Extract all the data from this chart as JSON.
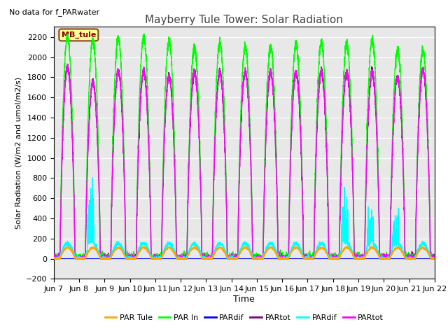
{
  "title": "Mayberry Tule Tower: Solar Radiation",
  "no_data_text": "No data for f_PARwater",
  "ylabel": "Solar Radiation (W/m2 and umol/m2/s)",
  "xlabel": "Time",
  "ylim": [
    -200,
    2300
  ],
  "xtick_labels": [
    "Jun 7",
    "Jun 8",
    "Jun 9",
    "Jun 10",
    "Jun 11",
    "Jun 12",
    "Jun 13",
    "Jun 14",
    "Jun 15",
    "Jun 16",
    "Jun 17",
    "Jun 18",
    "Jun 19",
    "Jun 20",
    "Jun 21",
    "Jun 22"
  ],
  "legend_entries": [
    "PAR Tule",
    "PAR In",
    "PARdif",
    "PARtot",
    "PARdif",
    "PARtot"
  ],
  "legend_colors": [
    "#FFA500",
    "#00FF00",
    "#0000FF",
    "#800080",
    "#00FFFF",
    "#FF00FF"
  ],
  "annotation_box": "MB_tule",
  "annotation_box_facecolor": "#FFFF99",
  "annotation_box_edgecolor": "#8B4513",
  "annotation_box_textcolor": "#8B0000",
  "background_color": "#E8E8E8",
  "n_days": 15,
  "par_in_peaks": [
    2200,
    2170,
    2190,
    2200,
    2160,
    2100,
    2140,
    2100,
    2100,
    2130,
    2140,
    2130,
    2170,
    2070,
    2060
  ],
  "partot_purple_peaks": [
    1900,
    1750,
    1860,
    1860,
    1810,
    1850,
    1850,
    1850,
    1850,
    1850,
    1860,
    1850,
    1850,
    1800,
    1870
  ]
}
